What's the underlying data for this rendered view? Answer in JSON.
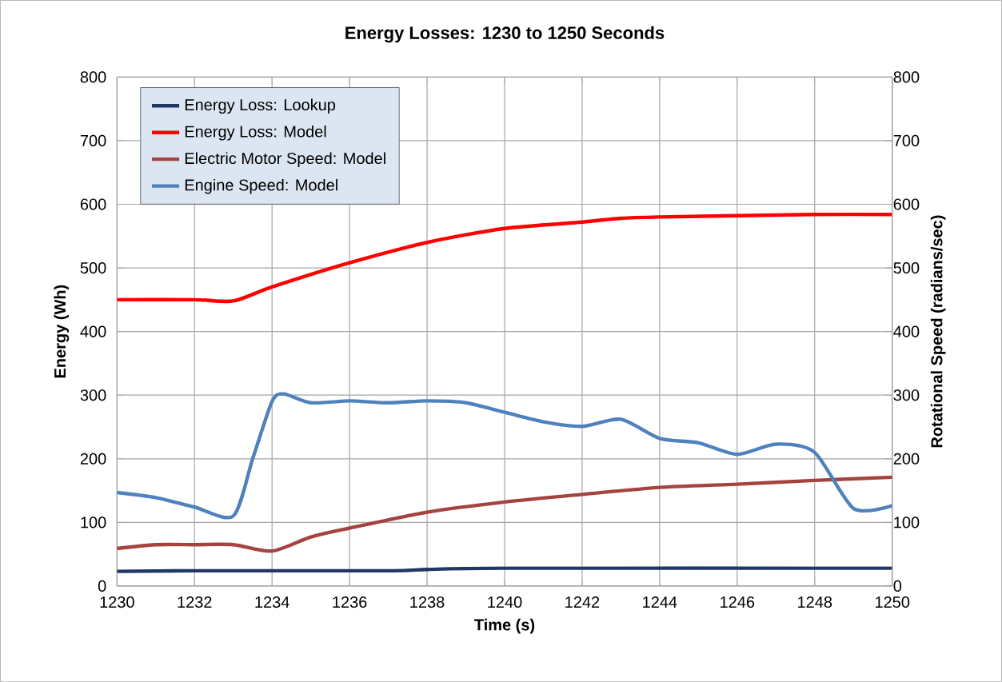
{
  "chart_data": {
    "type": "line",
    "title": "Energy Losses: 1230 to 1250 Seconds",
    "xlabel": "Time (s)",
    "ylabel": "Energy (Wh)",
    "y2label": "Rotational Speed (radians/sec)",
    "xlim": [
      1230,
      1250
    ],
    "xticks": [
      1230,
      1232,
      1234,
      1236,
      1238,
      1240,
      1242,
      1244,
      1246,
      1248,
      1250
    ],
    "ylim": [
      0,
      800
    ],
    "yticks": [
      0,
      100,
      200,
      300,
      400,
      500,
      600,
      700,
      800
    ],
    "y2lim": [
      0,
      800
    ],
    "y2ticks": [
      0,
      100,
      200,
      300,
      400,
      500,
      600,
      700,
      800
    ],
    "grid": true,
    "legend": "top left",
    "marker": "none",
    "line_style": "solid",
    "series": [
      {
        "name": "Energy Loss: Lookup",
        "color": "#1f3864",
        "x": [
          1230,
          1232,
          1237,
          1238,
          1240,
          1250
        ],
        "values": [
          23,
          24,
          24,
          26,
          28,
          28
        ]
      },
      {
        "name": "Energy Loss: Model",
        "color": "#ff0000",
        "x": [
          1230,
          1232,
          1233,
          1234,
          1236,
          1238,
          1240,
          1242,
          1243,
          1244,
          1246,
          1248,
          1250
        ],
        "values": [
          450,
          450,
          448,
          470,
          508,
          540,
          562,
          572,
          578,
          580,
          582,
          584,
          584
        ]
      },
      {
        "name": "Electric Motor Speed: Model",
        "color": "#a5443f",
        "axis": "y2",
        "x": [
          1230,
          1231,
          1232,
          1233,
          1234,
          1235,
          1236,
          1238,
          1240,
          1242,
          1244,
          1246,
          1248,
          1250
        ],
        "values": [
          59,
          65,
          65,
          65,
          55,
          77,
          91,
          116,
          132,
          144,
          155,
          160,
          166,
          171
        ]
      },
      {
        "name": "Engine Speed: Model",
        "color": "#4f81bd",
        "axis": "y2",
        "x": [
          1230,
          1231,
          1232,
          1233,
          1233.5,
          1234,
          1234.3,
          1235,
          1236,
          1237,
          1238,
          1239,
          1240,
          1241,
          1242,
          1243,
          1244,
          1245,
          1246,
          1247,
          1248,
          1249,
          1250
        ],
        "values": [
          147,
          139,
          124,
          110,
          200,
          290,
          302,
          288,
          291,
          288,
          291,
          288,
          273,
          258,
          251,
          262,
          232,
          225,
          207,
          223,
          210,
          122,
          126
        ]
      }
    ]
  }
}
